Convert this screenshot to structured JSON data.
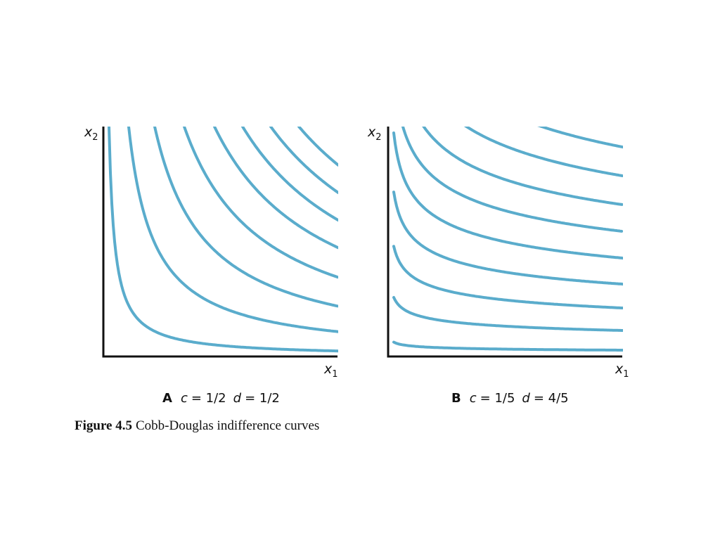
{
  "figure": {
    "panels": [
      {
        "y_label": {
          "base": "x",
          "sub": "2"
        },
        "x_label": {
          "base": "x",
          "sub": "1"
        },
        "caption": {
          "letter": "A",
          "c": "c",
          "c_value": "= 1/2",
          "d": "d",
          "d_value": "= 1/2"
        }
      },
      {
        "y_label": {
          "base": "x",
          "sub": "2"
        },
        "x_label": {
          "base": "x",
          "sub": "1"
        },
        "caption": {
          "letter": "B",
          "c": "c",
          "c_value": "= 1/5",
          "d": "d",
          "d_value": "= 4/5"
        }
      }
    ],
    "caption": {
      "label": "Figure 4.5",
      "text": "Cobb-Douglas indifference curves"
    }
  }
}
